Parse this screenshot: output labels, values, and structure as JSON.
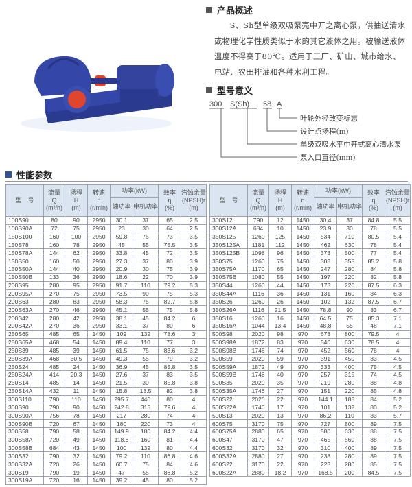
{
  "overview": {
    "title": "产品概述",
    "text": "S、Sh型单级双吸泵壳中开之离心泵，供抽送清水或物理化学性质类似于水的其它液体之用。被输送液体温度不得高于80℃。适用于工厂、矿山、城市给水、电站、农田排灌和各种水利工程。"
  },
  "model_meaning": {
    "title": "型号意义",
    "parts": [
      "300",
      "S(Sh)",
      "58",
      "A"
    ],
    "descriptions": [
      "叶轮外径改变标志",
      "设计点扬程(m)",
      "单级双吸水平中开式离心清水泵",
      "泵入口直径(mm)"
    ]
  },
  "performance": {
    "title": "性能参数",
    "headers": {
      "model": "型　号",
      "flow": "流量",
      "flow_sym": "Q",
      "flow_unit": "(m³/h)",
      "head": "扬程",
      "head_sym": "H",
      "head_unit": "(m)",
      "speed": "转速",
      "speed_sym": "n",
      "speed_unit": "(r/min)",
      "power": "功率(kW)",
      "shaft_power": "轴功率",
      "motor_power": "电机功率",
      "eff": "效率",
      "eff_sym": "η",
      "eff_unit": "(%)",
      "npsh": "汽蚀余量",
      "npsh_sym": "(NPSH)r",
      "npsh_unit": "(m)"
    },
    "left_rows": [
      [
        "100S90",
        "80",
        "90",
        "2950",
        "30.1",
        "37",
        "65",
        "2.5"
      ],
      [
        "100S90A",
        "72",
        "75",
        "2950",
        "23",
        "30",
        "64",
        "2.5"
      ],
      [
        "150S100",
        "160",
        "100",
        "2950",
        "59.8",
        "75",
        "73",
        "3.5"
      ],
      [
        "150S78",
        "160",
        "78",
        "2950",
        "45",
        "55",
        "75.5",
        "3.5"
      ],
      [
        "150S78A",
        "144",
        "62",
        "2950",
        "33.8",
        "45",
        "72",
        "3.5"
      ],
      [
        "150S50",
        "160",
        "50",
        "2950",
        "27.3",
        "37",
        "80",
        "3.9"
      ],
      [
        "150S50A",
        "144",
        "40",
        "2950",
        "20.9",
        "30",
        "75",
        "3.9"
      ],
      [
        "150S50B",
        "133",
        "36",
        "2950",
        "18.6",
        "22",
        "70",
        "3.9"
      ],
      [
        "200S95",
        "280",
        "95",
        "2950",
        "91.7",
        "110",
        "79.2",
        "5.3"
      ],
      [
        "200S95A",
        "270",
        "75",
        "2950",
        "73.5",
        "90",
        "75",
        "5.3"
      ],
      [
        "200S63",
        "280",
        "63",
        "2950",
        "58.3",
        "75",
        "82.7",
        "5.8"
      ],
      [
        "200S63A",
        "270",
        "46",
        "2950",
        "45.1",
        "55",
        "75",
        "5.8"
      ],
      [
        "200S42",
        "280",
        "42",
        "2950",
        "38.1",
        "45",
        "84.2",
        "6"
      ],
      [
        "200S42A",
        "270",
        "36",
        "2950",
        "33.1",
        "37",
        "80",
        "6"
      ],
      [
        "250S65",
        "485",
        "65",
        "1450",
        "109",
        "132",
        "78.6",
        "3"
      ],
      [
        "250S65A",
        "468",
        "54",
        "1450",
        "89.4",
        "110",
        "77",
        "3"
      ],
      [
        "250S39",
        "485",
        "39",
        "1450",
        "61.5",
        "75",
        "83.6",
        "3.2"
      ],
      [
        "250S39A",
        "468",
        "30.5",
        "1450",
        "49.3",
        "55",
        "79",
        "3.2"
      ],
      [
        "250S24",
        "485",
        "24",
        "1450",
        "36.9",
        "45",
        "85.8",
        "3.5"
      ],
      [
        "250S24A",
        "414",
        "20.3",
        "1450",
        "27.6",
        "37",
        "83",
        "3.5"
      ],
      [
        "250S14",
        "485",
        "14",
        "1450",
        "21.5",
        "30",
        "85.8",
        "3.8"
      ],
      [
        "250S14A",
        "432",
        "11",
        "1450",
        "15.8",
        "18.5",
        "82",
        "3.8"
      ],
      [
        "300S110",
        "790",
        "110",
        "1450",
        "295.7",
        "440",
        "80",
        "4"
      ],
      [
        "300S90",
        "790",
        "90",
        "1450",
        "242.8",
        "315",
        "79.6",
        "4"
      ],
      [
        "300S90A",
        "756",
        "78",
        "1450",
        "217",
        "280",
        "74",
        "4"
      ],
      [
        "300S90B",
        "720",
        "67",
        "1450",
        "180",
        "220",
        "73",
        "4"
      ],
      [
        "300S58",
        "790",
        "58",
        "1450",
        "149.9",
        "180",
        "84.2",
        "4.4"
      ],
      [
        "300S58A",
        "720",
        "49",
        "1450",
        "118.6",
        "160",
        "81",
        "4.4"
      ],
      [
        "300S58B",
        "684",
        "43",
        "1450",
        "100",
        "132",
        "80",
        "4.4"
      ],
      [
        "300S32",
        "790",
        "32",
        "1450",
        "79.2",
        "110",
        "86.8",
        "4.6"
      ],
      [
        "300S32A",
        "720",
        "26",
        "1450",
        "60.7",
        "75",
        "84",
        "4.6"
      ],
      [
        "300S19",
        "790",
        "19",
        "1450",
        "47",
        "55",
        "86.8",
        "5.2"
      ],
      [
        "300S19A",
        "720",
        "16",
        "1450",
        "39.2",
        "45",
        "80",
        "5.2"
      ]
    ],
    "right_rows": [
      [
        "300S12",
        "790",
        "12",
        "1450",
        "30.4",
        "37",
        "84.8",
        "5.5"
      ],
      [
        "300S12A",
        "684",
        "10",
        "1450",
        "23.9",
        "30",
        "78",
        "5.5"
      ],
      [
        "350S125",
        "1260",
        "125",
        "1450",
        "534",
        "710",
        "80.5",
        "5.4"
      ],
      [
        "350S125A",
        "1181",
        "112",
        "1450",
        "462",
        "630",
        "78",
        "5.4"
      ],
      [
        "350S125B",
        "1098",
        "96",
        "1450",
        "373",
        "500",
        "77",
        "5.4"
      ],
      [
        "350S75",
        "1260",
        "75",
        "1450",
        "303",
        "355",
        "85.2",
        "5.8"
      ],
      [
        "350S75A",
        "1170",
        "65",
        "1450",
        "247",
        "280",
        "84",
        "5.8"
      ],
      [
        "350S75B",
        "1080",
        "55",
        "1450",
        "197",
        "220",
        "82",
        "5.8"
      ],
      [
        "350S44",
        "1260",
        "44",
        "1450",
        "173",
        "220",
        "87.5",
        "6.3"
      ],
      [
        "350S44A",
        "1116",
        "36",
        "1450",
        "131",
        "160",
        "84",
        "6.3"
      ],
      [
        "350S26",
        "1260",
        "26",
        "1450",
        "102",
        "132",
        "87.5",
        "6.7"
      ],
      [
        "350S26A",
        "1116",
        "21.5",
        "1450",
        "78.8",
        "90",
        "83",
        "6.7"
      ],
      [
        "350S16",
        "1260",
        "16",
        "1450",
        "64.5",
        "75",
        "85.3",
        "7.1"
      ],
      [
        "350S16A",
        "1044",
        "13.4",
        "1450",
        "48.8",
        "55",
        "48",
        "7.1"
      ],
      [
        "500S98",
        "2020",
        "98",
        "970",
        "678",
        "800",
        "79.5",
        "4"
      ],
      [
        "500S98A",
        "1872",
        "83",
        "970",
        "540",
        "630",
        "78.5",
        "4"
      ],
      [
        "500S98B",
        "1746",
        "74",
        "970",
        "452",
        "560",
        "78",
        "4"
      ],
      [
        "500S59",
        "2020",
        "59",
        "970",
        "391",
        "450",
        "83",
        "4.5"
      ],
      [
        "500S59A",
        "1872",
        "49",
        "970",
        "333",
        "400",
        "75",
        "4.5"
      ],
      [
        "500S59B",
        "1746",
        "40",
        "970",
        "257",
        "315",
        "74",
        "4.5"
      ],
      [
        "500S35",
        "2020",
        "35",
        "970",
        "219",
        "280",
        "88",
        "4.8"
      ],
      [
        "500S35A",
        "1746",
        "27",
        "970",
        "151",
        "220",
        "85",
        "4.8"
      ],
      [
        "500S22",
        "2020",
        "22",
        "970",
        "144.1",
        "185",
        "84",
        "5.2"
      ],
      [
        "500S22A",
        "1746",
        "17",
        "970",
        "101",
        "132",
        "80",
        "5.2"
      ],
      [
        "500S13",
        "2020",
        "13",
        "970",
        "86.2",
        "110",
        "83",
        "5.7"
      ],
      [
        "600S75",
        "3170",
        "75",
        "970",
        "727",
        "800",
        "89",
        "7.5"
      ],
      [
        "600S75A",
        "2880",
        "65",
        "970",
        "580",
        "630",
        "88",
        "7.5"
      ],
      [
        "600S47",
        "3170",
        "47",
        "970",
        "465",
        "560",
        "88",
        "7.5"
      ],
      [
        "600S32",
        "3170",
        "32",
        "970",
        "310",
        "400",
        "89",
        "7.5"
      ],
      [
        "600S32A",
        "2880",
        "27",
        "970",
        "238",
        "280",
        "89",
        "7.5"
      ],
      [
        "600S22",
        "3170",
        "22",
        "970",
        "223",
        "280",
        "85",
        "7.5"
      ],
      [
        "600S22A",
        "2880",
        "18.2",
        "970",
        "168.5",
        "200",
        "84.5",
        "7.5"
      ]
    ]
  },
  "colors": {
    "pump_body": "#2d3f9e",
    "coupling": "#e0452e",
    "header_bg": "#dbe5f1",
    "section_marker": "#2f5597"
  }
}
